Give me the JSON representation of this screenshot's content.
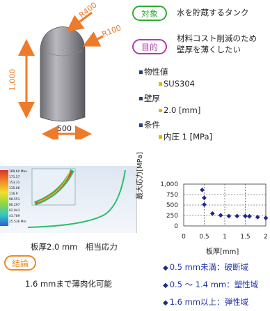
{
  "tank": {
    "label_r400": "R400",
    "label_r100": "R100",
    "label_height": "1,000",
    "label_width": "500"
  },
  "target": {
    "badge": "対象",
    "text": "水を貯蔵するタンク"
  },
  "purpose": {
    "badge": "目的",
    "line1": "材料コスト削減のため",
    "line2": "壁厚を薄くしたい"
  },
  "properties": {
    "h1": "物性値",
    "v1": "SUS304",
    "h2": "壁厚",
    "v2": "2.0 [mm]",
    "h3": "条件",
    "v3": "内圧 1 [MPa]"
  },
  "sim": {
    "caption": "板厚2.0 mm　相当応力",
    "legend": [
      "189.60 Max",
      "171.57",
      "153.31",
      "135.06",
      "116.9",
      "98.551",
      "80.297",
      "62.043",
      "43.789",
      "25.536 Min"
    ]
  },
  "chart_data": {
    "type": "scatter",
    "xlabel": "板厚[mm]",
    "ylabel": "最大応力[MPa]",
    "xlim": [
      0,
      2
    ],
    "ylim": [
      0,
      1000
    ],
    "xticks": [
      "0",
      "0.5",
      "1",
      "1.5",
      "2"
    ],
    "yticks": [
      "0",
      "250",
      "500",
      "750",
      "1,000"
    ],
    "grid": true,
    "series": [
      {
        "x": [
          0.45,
          0.5,
          0.5,
          0.7,
          0.9,
          1.1,
          1.3,
          1.5,
          1.6,
          1.8,
          2.0
        ],
        "y": [
          860,
          670,
          510,
          295,
          255,
          235,
          235,
          235,
          230,
          210,
          190
        ]
      }
    ]
  },
  "conclusion": {
    "badge": "結論",
    "text": "1.6 mmまで薄肉化可能"
  },
  "regions": [
    "0.5 mm未満：破断域",
    "0.5 ～ 1.4 mm：塑性域",
    "1.6 mm以上：弾性域"
  ],
  "colors": {
    "arrow": "#ee7b2a",
    "badge_green": "#33aa33",
    "badge_purple": "#b03aa8",
    "badge_orange": "#ee8822",
    "marker": "#1c2a8c",
    "region_text": "#2233aa"
  }
}
